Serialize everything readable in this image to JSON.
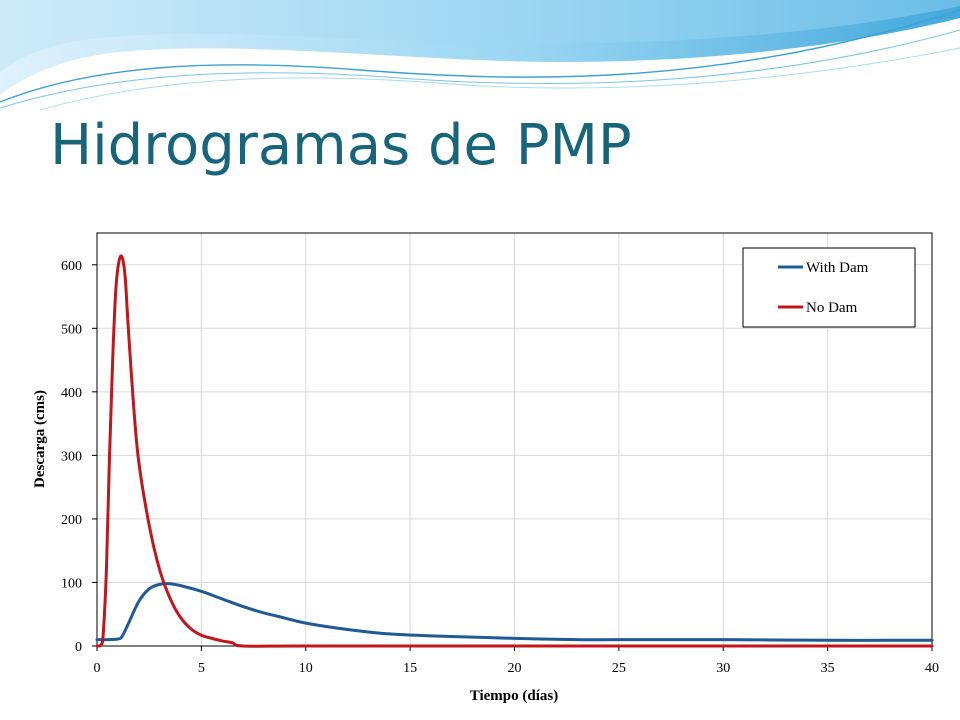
{
  "slide": {
    "title": "Hidrogramas de PMP"
  },
  "colors": {
    "title": "#17657a",
    "with_dam": "#1f5a96",
    "no_dam": "#c0161c",
    "grid": "#d9d9d9",
    "header_blue": "#5fb6e6"
  },
  "chart_data": {
    "type": "line",
    "title": "",
    "xlabel": "Tiempo (días)",
    "ylabel": "Descarga (cms)",
    "xlim": [
      0,
      40
    ],
    "ylim": [
      0,
      650
    ],
    "xticks": [
      0,
      5,
      10,
      15,
      20,
      25,
      30,
      35,
      40
    ],
    "yticks": [
      0,
      100,
      200,
      300,
      400,
      500,
      600
    ],
    "grid": true,
    "legend": "top-right",
    "series": [
      {
        "name": "With Dam",
        "color": "#1f5a96",
        "x": [
          0,
          0.5,
          1.0,
          1.2,
          1.5,
          2.0,
          2.5,
          3.0,
          3.5,
          4.0,
          5.0,
          6.0,
          7.0,
          8.0,
          9.0,
          10.0,
          12.0,
          14.0,
          16.0,
          18.0,
          20.0,
          23.0,
          25.0,
          30.0,
          35.0,
          40.0
        ],
        "y": [
          10,
          10,
          11,
          15,
          35,
          70,
          90,
          97,
          98,
          95,
          86,
          74,
          62,
          52,
          44,
          36,
          26,
          19,
          16,
          14,
          12,
          10,
          10,
          10,
          9,
          9
        ]
      },
      {
        "name": "No Dam",
        "color": "#c0161c",
        "x": [
          0,
          0.2,
          0.3,
          0.45,
          0.6,
          0.75,
          0.9,
          1.05,
          1.2,
          1.35,
          1.5,
          1.75,
          2.0,
          2.5,
          3.0,
          3.5,
          4.0,
          4.5,
          5.0,
          5.5,
          6.0,
          6.5,
          7.0,
          10.0,
          20.0,
          30.0,
          40.0
        ],
        "y": [
          0,
          2,
          20,
          120,
          300,
          450,
          560,
          605,
          612,
          580,
          500,
          380,
          290,
          190,
          120,
          75,
          45,
          27,
          17,
          12,
          8,
          5,
          0,
          0,
          0,
          0,
          0
        ]
      }
    ]
  }
}
